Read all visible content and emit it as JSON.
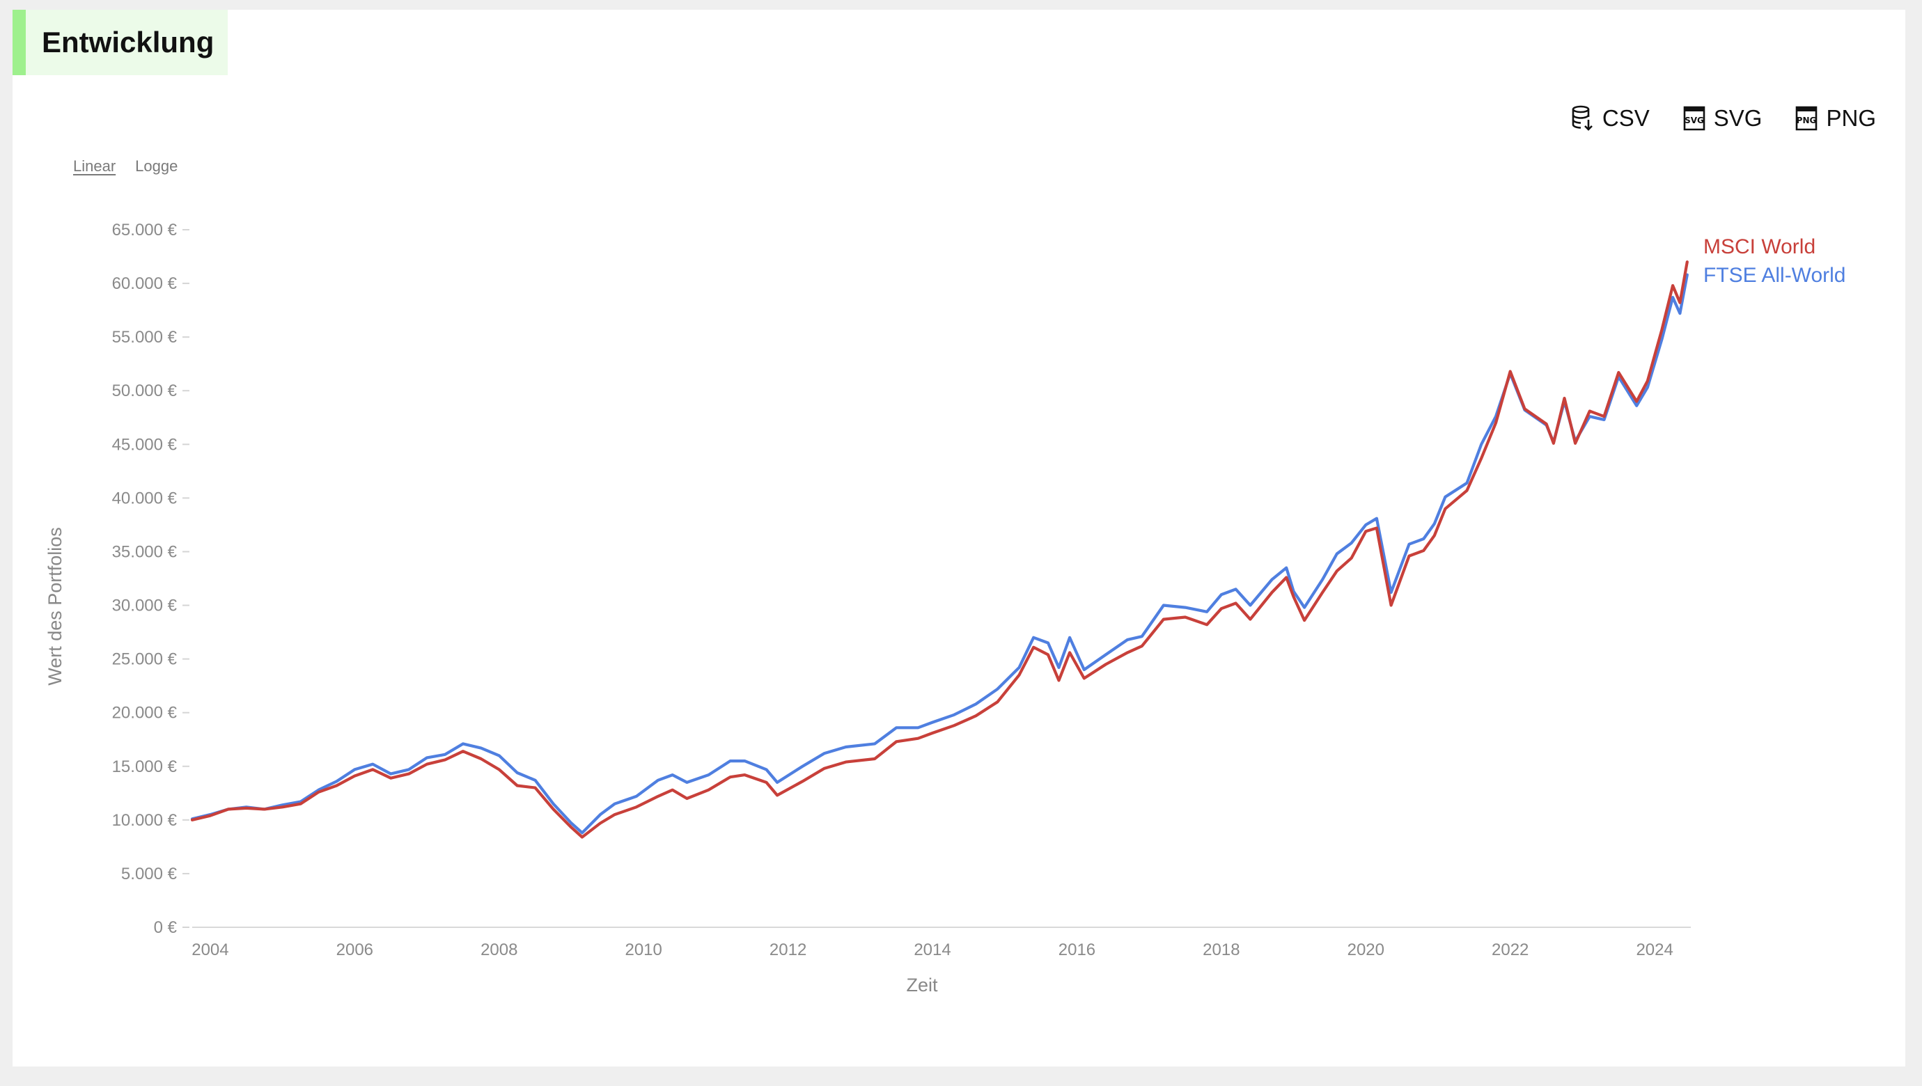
{
  "section": {
    "title": "Entwicklung"
  },
  "toolbar": {
    "buttons": [
      {
        "label": "CSV",
        "icon": "database-download-icon"
      },
      {
        "label": "SVG",
        "icon": "svg-file-icon"
      },
      {
        "label": "PNG",
        "icon": "png-file-icon"
      }
    ]
  },
  "scale_toggle": {
    "linear": "Linear",
    "log": "Logge",
    "active": "linear"
  },
  "chart_data": {
    "type": "line",
    "title": "",
    "xlabel": "Zeit",
    "ylabel": "Wert des Portfolios",
    "x_ticks": [
      "2004",
      "2006",
      "2008",
      "2010",
      "2012",
      "2014",
      "2016",
      "2018",
      "2020",
      "2022",
      "2024"
    ],
    "y_ticks": [
      "0 €",
      "5.000 €",
      "10.000 €",
      "15.000 €",
      "20.000 €",
      "25.000 €",
      "30.000 €",
      "35.000 €",
      "40.000 €",
      "45.000 €",
      "50.000 €",
      "55.000 €",
      "60.000 €",
      "65.000 €"
    ],
    "xlim": [
      2003.75,
      2024.5
    ],
    "ylim": [
      0,
      65000
    ],
    "legend": "right-end-of-lines",
    "series": [
      {
        "name": "MSCI World",
        "color": "#c8403a",
        "points": [
          [
            2003.75,
            10000
          ],
          [
            2004.0,
            10400
          ],
          [
            2004.25,
            11000
          ],
          [
            2004.5,
            11100
          ],
          [
            2004.75,
            11000
          ],
          [
            2005.0,
            11200
          ],
          [
            2005.25,
            11500
          ],
          [
            2005.5,
            12600
          ],
          [
            2005.75,
            13200
          ],
          [
            2006.0,
            14100
          ],
          [
            2006.25,
            14700
          ],
          [
            2006.5,
            13900
          ],
          [
            2006.75,
            14300
          ],
          [
            2007.0,
            15200
          ],
          [
            2007.25,
            15600
          ],
          [
            2007.5,
            16400
          ],
          [
            2007.75,
            15700
          ],
          [
            2008.0,
            14700
          ],
          [
            2008.25,
            13200
          ],
          [
            2008.5,
            13000
          ],
          [
            2008.75,
            11000
          ],
          [
            2009.0,
            9300
          ],
          [
            2009.15,
            8400
          ],
          [
            2009.4,
            9700
          ],
          [
            2009.6,
            10500
          ],
          [
            2009.9,
            11200
          ],
          [
            2010.2,
            12200
          ],
          [
            2010.4,
            12800
          ],
          [
            2010.6,
            12000
          ],
          [
            2010.9,
            12800
          ],
          [
            2011.2,
            14000
          ],
          [
            2011.4,
            14200
          ],
          [
            2011.7,
            13500
          ],
          [
            2011.85,
            12300
          ],
          [
            2012.2,
            13600
          ],
          [
            2012.5,
            14800
          ],
          [
            2012.8,
            15400
          ],
          [
            2013.2,
            15700
          ],
          [
            2013.5,
            17300
          ],
          [
            2013.8,
            17600
          ],
          [
            2014.0,
            18100
          ],
          [
            2014.3,
            18800
          ],
          [
            2014.6,
            19700
          ],
          [
            2014.9,
            21000
          ],
          [
            2015.2,
            23500
          ],
          [
            2015.4,
            26100
          ],
          [
            2015.6,
            25400
          ],
          [
            2015.75,
            23000
          ],
          [
            2015.9,
            25600
          ],
          [
            2016.1,
            23200
          ],
          [
            2016.4,
            24500
          ],
          [
            2016.7,
            25600
          ],
          [
            2016.9,
            26200
          ],
          [
            2017.2,
            28700
          ],
          [
            2017.5,
            28900
          ],
          [
            2017.8,
            28200
          ],
          [
            2018.0,
            29700
          ],
          [
            2018.2,
            30200
          ],
          [
            2018.4,
            28700
          ],
          [
            2018.7,
            31200
          ],
          [
            2018.9,
            32600
          ],
          [
            2019.0,
            30800
          ],
          [
            2019.15,
            28600
          ],
          [
            2019.4,
            31200
          ],
          [
            2019.6,
            33200
          ],
          [
            2019.8,
            34400
          ],
          [
            2020.0,
            36900
          ],
          [
            2020.15,
            37200
          ],
          [
            2020.35,
            30000
          ],
          [
            2020.6,
            34600
          ],
          [
            2020.8,
            35100
          ],
          [
            2020.95,
            36500
          ],
          [
            2021.1,
            39000
          ],
          [
            2021.4,
            40700
          ],
          [
            2021.6,
            43700
          ],
          [
            2021.8,
            47000
          ],
          [
            2022.0,
            51800
          ],
          [
            2022.2,
            48300
          ],
          [
            2022.5,
            46900
          ],
          [
            2022.6,
            45100
          ],
          [
            2022.75,
            49300
          ],
          [
            2022.9,
            45100
          ],
          [
            2023.1,
            48100
          ],
          [
            2023.3,
            47600
          ],
          [
            2023.5,
            51700
          ],
          [
            2023.75,
            49000
          ],
          [
            2023.9,
            50900
          ],
          [
            2024.1,
            55700
          ],
          [
            2024.25,
            59800
          ],
          [
            2024.35,
            58200
          ],
          [
            2024.45,
            62000
          ]
        ]
      },
      {
        "name": "FTSE All-World",
        "color": "#4f7fe0",
        "points": [
          [
            2003.75,
            10100
          ],
          [
            2004.0,
            10500
          ],
          [
            2004.25,
            11000
          ],
          [
            2004.5,
            11200
          ],
          [
            2004.75,
            11000
          ],
          [
            2005.0,
            11400
          ],
          [
            2005.25,
            11700
          ],
          [
            2005.5,
            12800
          ],
          [
            2005.75,
            13600
          ],
          [
            2006.0,
            14700
          ],
          [
            2006.25,
            15200
          ],
          [
            2006.5,
            14300
          ],
          [
            2006.75,
            14700
          ],
          [
            2007.0,
            15800
          ],
          [
            2007.25,
            16100
          ],
          [
            2007.5,
            17100
          ],
          [
            2007.75,
            16700
          ],
          [
            2008.0,
            16000
          ],
          [
            2008.25,
            14400
          ],
          [
            2008.5,
            13700
          ],
          [
            2008.75,
            11500
          ],
          [
            2009.0,
            9700
          ],
          [
            2009.15,
            8800
          ],
          [
            2009.4,
            10500
          ],
          [
            2009.6,
            11500
          ],
          [
            2009.9,
            12200
          ],
          [
            2010.2,
            13700
          ],
          [
            2010.4,
            14200
          ],
          [
            2010.6,
            13500
          ],
          [
            2010.9,
            14200
          ],
          [
            2011.2,
            15500
          ],
          [
            2011.4,
            15500
          ],
          [
            2011.7,
            14700
          ],
          [
            2011.85,
            13500
          ],
          [
            2012.2,
            15000
          ],
          [
            2012.5,
            16200
          ],
          [
            2012.8,
            16800
          ],
          [
            2013.2,
            17100
          ],
          [
            2013.5,
            18600
          ],
          [
            2013.8,
            18600
          ],
          [
            2014.0,
            19100
          ],
          [
            2014.3,
            19800
          ],
          [
            2014.6,
            20800
          ],
          [
            2014.9,
            22200
          ],
          [
            2015.2,
            24200
          ],
          [
            2015.4,
            27000
          ],
          [
            2015.6,
            26500
          ],
          [
            2015.75,
            24200
          ],
          [
            2015.9,
            27000
          ],
          [
            2016.1,
            24000
          ],
          [
            2016.4,
            25400
          ],
          [
            2016.7,
            26800
          ],
          [
            2016.9,
            27100
          ],
          [
            2017.2,
            30000
          ],
          [
            2017.5,
            29800
          ],
          [
            2017.8,
            29400
          ],
          [
            2018.0,
            31000
          ],
          [
            2018.2,
            31500
          ],
          [
            2018.4,
            30000
          ],
          [
            2018.7,
            32400
          ],
          [
            2018.9,
            33500
          ],
          [
            2019.0,
            31300
          ],
          [
            2019.15,
            29800
          ],
          [
            2019.4,
            32400
          ],
          [
            2019.6,
            34800
          ],
          [
            2019.8,
            35800
          ],
          [
            2020.0,
            37500
          ],
          [
            2020.15,
            38100
          ],
          [
            2020.35,
            31200
          ],
          [
            2020.6,
            35700
          ],
          [
            2020.8,
            36200
          ],
          [
            2020.95,
            37600
          ],
          [
            2021.1,
            40100
          ],
          [
            2021.4,
            41400
          ],
          [
            2021.6,
            45000
          ],
          [
            2021.8,
            47600
          ],
          [
            2022.0,
            51600
          ],
          [
            2022.2,
            48200
          ],
          [
            2022.5,
            46800
          ],
          [
            2022.6,
            45200
          ],
          [
            2022.75,
            49000
          ],
          [
            2022.9,
            45300
          ],
          [
            2023.1,
            47600
          ],
          [
            2023.3,
            47300
          ],
          [
            2023.5,
            51300
          ],
          [
            2023.75,
            48600
          ],
          [
            2023.9,
            50300
          ],
          [
            2024.1,
            54800
          ],
          [
            2024.25,
            58700
          ],
          [
            2024.35,
            57200
          ],
          [
            2024.45,
            60800
          ]
        ]
      }
    ]
  }
}
